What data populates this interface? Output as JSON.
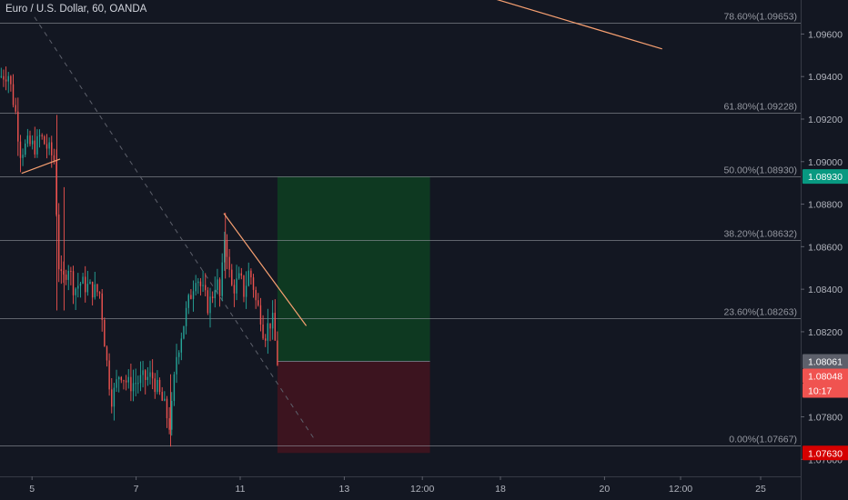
{
  "chart_data": {
    "type": "candlestick",
    "title": "Euro / U.S. Dollar, 60, OANDA",
    "ylim": [
      1.0752,
      1.0976
    ],
    "x_range": [
      0,
      200
    ],
    "price_ticks": [
      "1.09600",
      "1.09400",
      "1.09200",
      "1.09000",
      "1.08800",
      "1.08600",
      "1.08400",
      "1.08200",
      "1.07800",
      "1.07600"
    ],
    "x_ticks": [
      {
        "label": "5",
        "x": 8
      },
      {
        "label": "7",
        "x": 34
      },
      {
        "label": "11",
        "x": 60
      },
      {
        "label": "13",
        "x": 86
      },
      {
        "label": "12:00",
        "x": 105.5
      },
      {
        "label": "18",
        "x": 125
      },
      {
        "label": "20",
        "x": 151
      },
      {
        "label": "12:00",
        "x": 170
      },
      {
        "label": "25",
        "x": 190
      }
    ],
    "fib_levels": [
      {
        "label": "78.60%(1.09653)",
        "value": 1.09653
      },
      {
        "label": "61.80%(1.09228)",
        "value": 1.09228
      },
      {
        "label": "50.00%(1.08930)",
        "value": 1.0893
      },
      {
        "label": "38.20%(1.08632)",
        "value": 1.08632
      },
      {
        "label": "23.60%(1.08263)",
        "value": 1.08263
      },
      {
        "label": "0.00%(1.07667)",
        "value": 1.07667
      }
    ],
    "price_badges": [
      {
        "text": "1.08930",
        "value": 1.0893,
        "color": "#089981",
        "text_color": "#ffffff"
      },
      {
        "text": "1.08061",
        "value": 1.08061,
        "color": "#5d606b",
        "text_color": "#ffffff"
      },
      {
        "text": "1.08048",
        "value": 1.08048,
        "color": "#f05350",
        "text_color": "#ffffff"
      },
      {
        "text": "10:17",
        "value": 1.0797,
        "color": "#f05350",
        "text_color": "#ffffff"
      },
      {
        "text": "1.07630",
        "value": 1.0763,
        "color": "#d50000",
        "text_color": "#ffffff"
      }
    ],
    "position_tool": {
      "x_start": 69.3,
      "x_end": 107.4,
      "entry": 1.08061,
      "target": 1.0893,
      "stop": 1.0763
    },
    "trend_lines": [
      {
        "x1": 117.4,
        "y1": 1.098,
        "x2": 165.4,
        "y2": 1.0953,
        "color": "#f7a071"
      },
      {
        "x1": 5.4,
        "y1": 1.08945,
        "x2": 15.0,
        "y2": 1.09012,
        "color": "#f7a071"
      },
      {
        "x1": 55.9,
        "y1": 1.08757,
        "x2": 76.5,
        "y2": 1.08228,
        "color": "#f7a071"
      }
    ],
    "dashed_line": {
      "x1": 8.6,
      "y1": 1.0968,
      "x2": 78.8,
      "y2": 1.07687,
      "color": "#5d606b"
    },
    "candles_anchor": [
      [
        0,
        1.094
      ],
      [
        2,
        1.0942
      ],
      [
        4,
        1.0922
      ],
      [
        5,
        1.0905
      ],
      [
        7,
        1.0908
      ],
      [
        9,
        1.0907
      ],
      [
        10,
        1.0912
      ],
      [
        12,
        1.0906
      ],
      [
        13.8,
        1.09
      ],
      [
        14.4,
        1.0855
      ],
      [
        15.5,
        1.0842
      ],
      [
        17,
        1.0852
      ],
      [
        18.5,
        1.084
      ],
      [
        20,
        1.0843
      ],
      [
        23,
        1.084
      ],
      [
        25,
        1.0838
      ],
      [
        26,
        1.0818
      ],
      [
        27,
        1.08
      ],
      [
        28,
        1.0788
      ],
      [
        30,
        1.0802
      ],
      [
        32,
        1.0795
      ],
      [
        35,
        1.0797
      ],
      [
        38,
        1.0799
      ],
      [
        41,
        1.0785
      ],
      [
        42.5,
        1.0775
      ],
      [
        44,
        1.0808
      ],
      [
        46,
        1.0825
      ],
      [
        47,
        1.0833
      ],
      [
        48,
        1.084
      ],
      [
        49,
        1.0848
      ],
      [
        50,
        1.0842
      ],
      [
        52,
        1.0832
      ],
      [
        53,
        1.0837
      ],
      [
        54,
        1.0845
      ],
      [
        55,
        1.0835
      ],
      [
        56.3,
        1.087
      ],
      [
        57,
        1.085
      ],
      [
        58,
        1.084
      ],
      [
        60,
        1.0845
      ],
      [
        61,
        1.0838
      ],
      [
        62,
        1.0848
      ],
      [
        63,
        1.0845
      ],
      [
        64,
        1.0833
      ],
      [
        65,
        1.0829
      ],
      [
        66,
        1.0818
      ],
      [
        67,
        1.0823
      ],
      [
        68,
        1.0826
      ],
      [
        69.3,
        1.0806
      ]
    ]
  }
}
